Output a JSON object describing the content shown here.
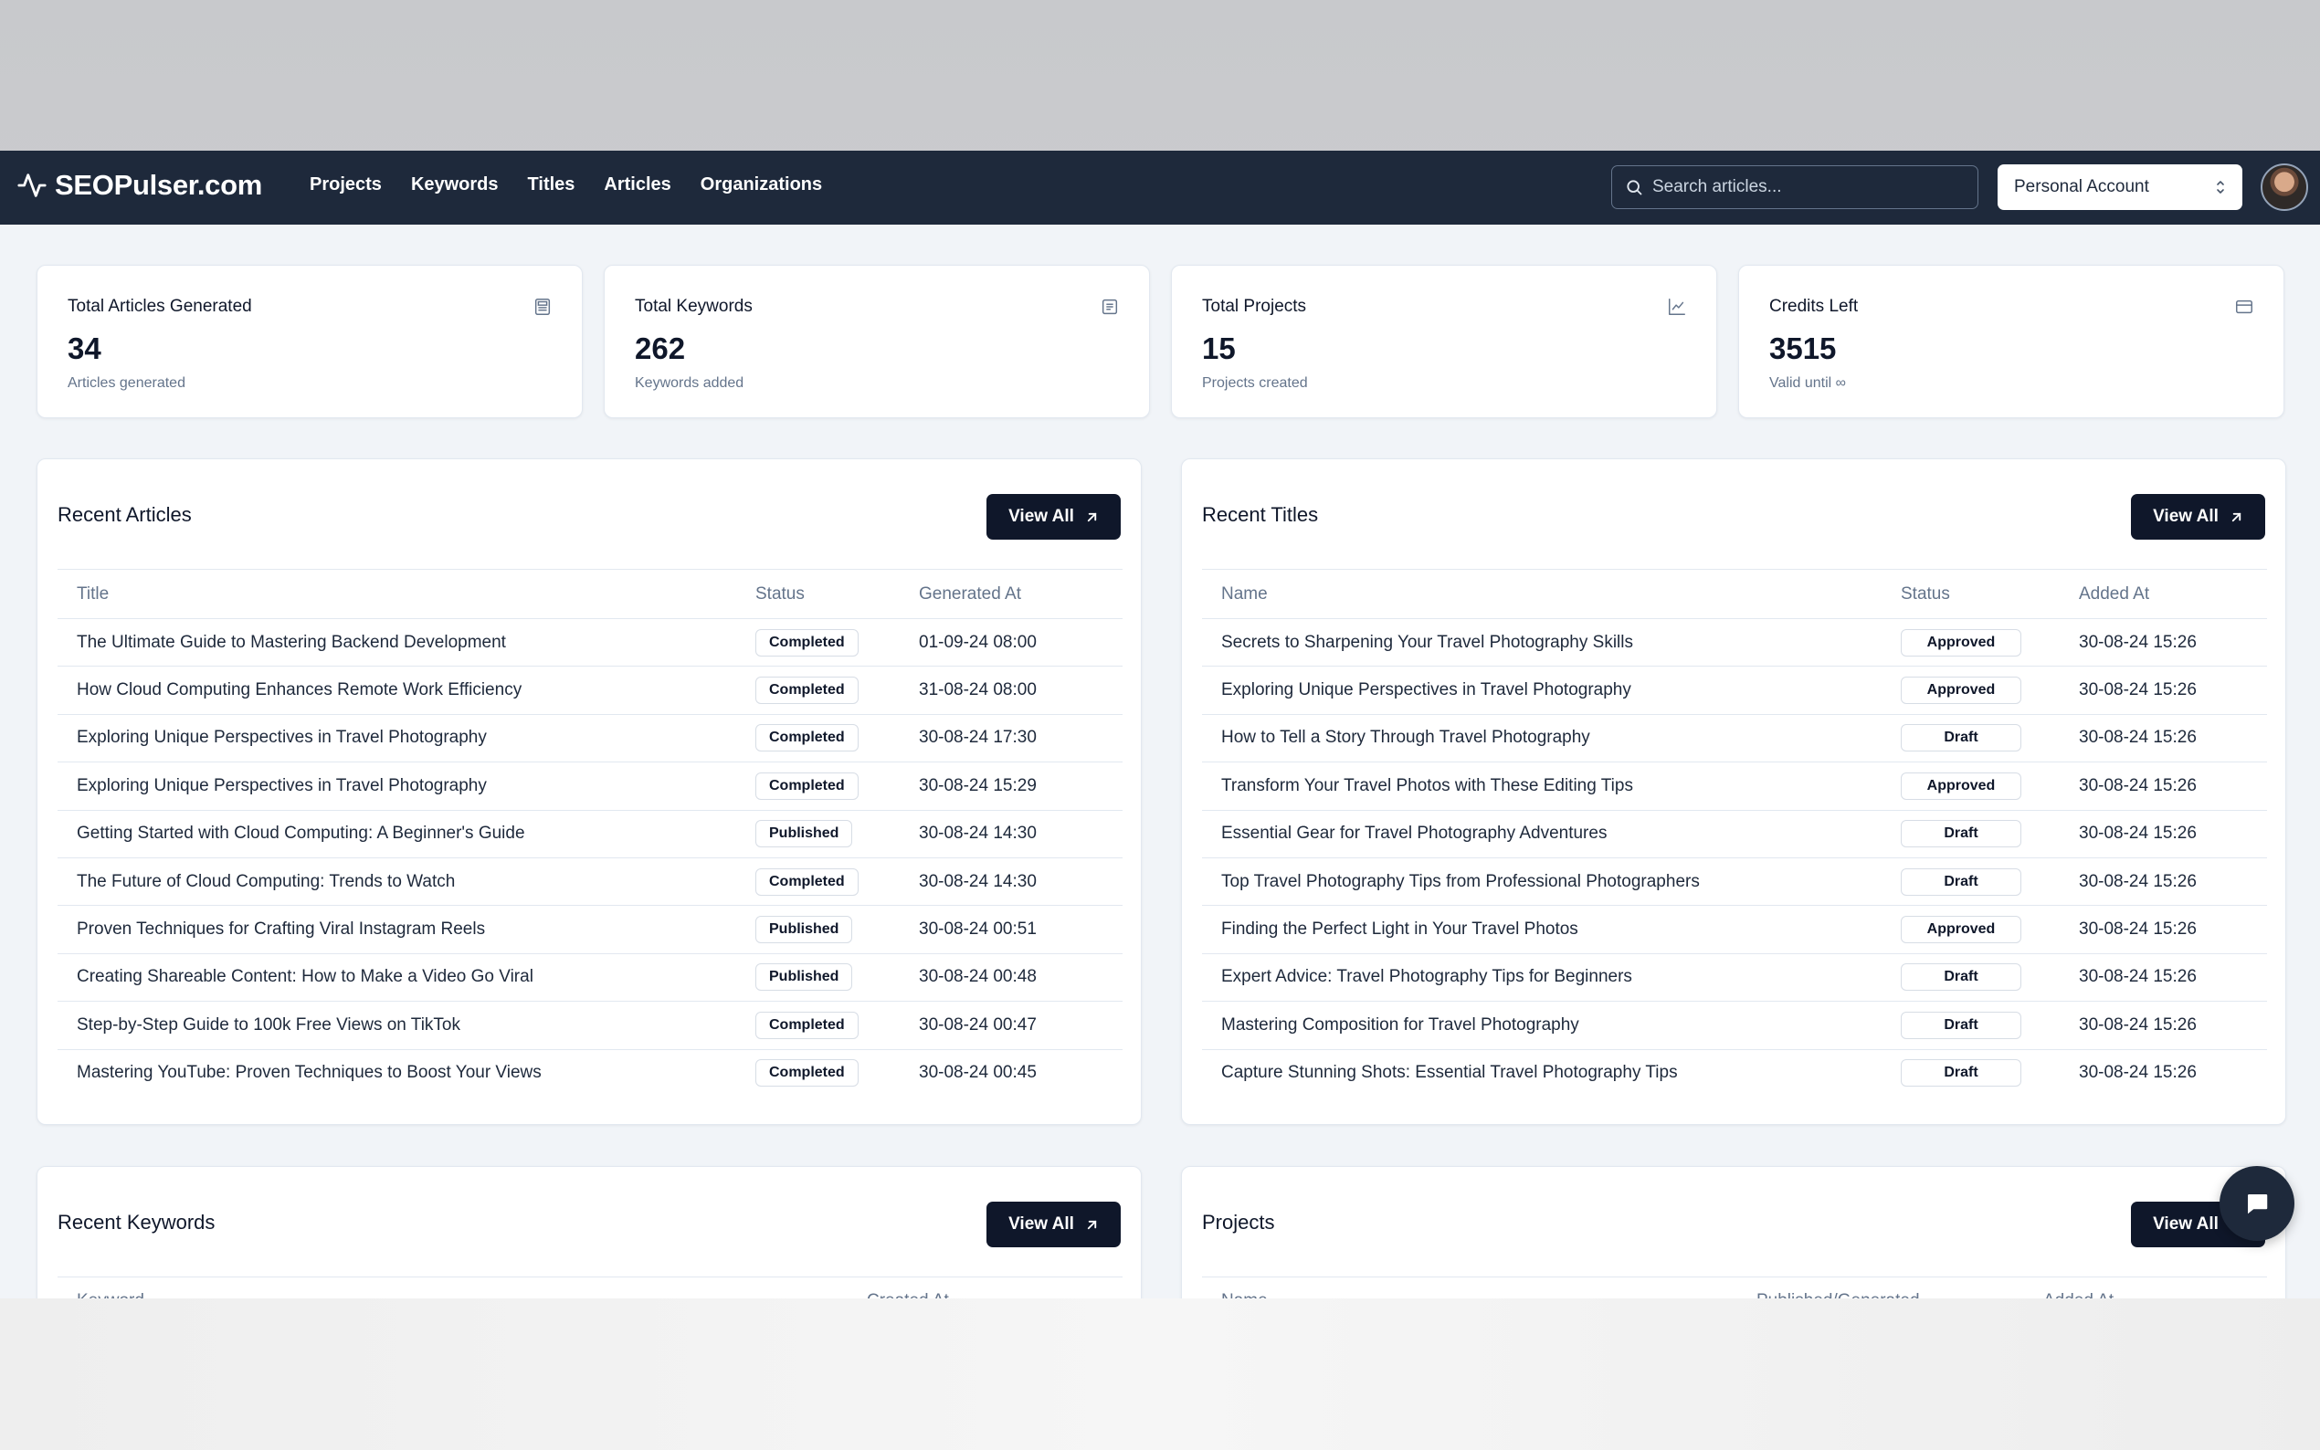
{
  "brand": {
    "name": "SEOPulser.com"
  },
  "nav": {
    "links": [
      "Projects",
      "Keywords",
      "Titles",
      "Articles",
      "Organizations"
    ]
  },
  "search": {
    "placeholder": "Search articles..."
  },
  "account": {
    "selected": "Personal Account"
  },
  "stats": [
    {
      "label": "Total Articles Generated",
      "value": "34",
      "sub": "Articles generated",
      "icon": "newspaper-icon"
    },
    {
      "label": "Total Keywords",
      "value": "262",
      "sub": "Keywords added",
      "icon": "list-icon"
    },
    {
      "label": "Total Projects",
      "value": "15",
      "sub": "Projects created",
      "icon": "line-chart-icon"
    },
    {
      "label": "Credits Left",
      "value": "3515",
      "sub": "Valid until ∞",
      "icon": "credit-card-icon"
    }
  ],
  "recent_articles": {
    "title": "Recent Articles",
    "view_all": "View All",
    "columns": [
      "Title",
      "Status",
      "Generated At"
    ],
    "rows": [
      [
        "The Ultimate Guide to Mastering Backend Development",
        "Completed",
        "01-09-24 08:00"
      ],
      [
        "How Cloud Computing Enhances Remote Work Efficiency",
        "Completed",
        "31-08-24 08:00"
      ],
      [
        "Exploring Unique Perspectives in Travel Photography",
        "Completed",
        "30-08-24 17:30"
      ],
      [
        "Exploring Unique Perspectives in Travel Photography",
        "Completed",
        "30-08-24 15:29"
      ],
      [
        "Getting Started with Cloud Computing: A Beginner's Guide",
        "Published",
        "30-08-24 14:30"
      ],
      [
        "The Future of Cloud Computing: Trends to Watch",
        "Completed",
        "30-08-24 14:30"
      ],
      [
        "Proven Techniques for Crafting Viral Instagram Reels",
        "Published",
        "30-08-24 00:51"
      ],
      [
        "Creating Shareable Content: How to Make a Video Go Viral",
        "Published",
        "30-08-24 00:48"
      ],
      [
        "Step-by-Step Guide to 100k Free Views on TikTok",
        "Completed",
        "30-08-24 00:47"
      ],
      [
        "Mastering YouTube: Proven Techniques to Boost Your Views",
        "Completed",
        "30-08-24 00:45"
      ]
    ]
  },
  "recent_titles": {
    "title": "Recent Titles",
    "view_all": "View All",
    "columns": [
      "Name",
      "Status",
      "Added At"
    ],
    "rows": [
      [
        "Secrets to Sharpening Your Travel Photography Skills",
        "Approved",
        "30-08-24 15:26"
      ],
      [
        "Exploring Unique Perspectives in Travel Photography",
        "Approved",
        "30-08-24 15:26"
      ],
      [
        "How to Tell a Story Through Travel Photography",
        "Draft",
        "30-08-24 15:26"
      ],
      [
        "Transform Your Travel Photos with These Editing Tips",
        "Approved",
        "30-08-24 15:26"
      ],
      [
        "Essential Gear for Travel Photography Adventures",
        "Draft",
        "30-08-24 15:26"
      ],
      [
        "Top Travel Photography Tips from Professional Photographers",
        "Draft",
        "30-08-24 15:26"
      ],
      [
        "Finding the Perfect Light in Your Travel Photos",
        "Approved",
        "30-08-24 15:26"
      ],
      [
        "Expert Advice: Travel Photography Tips for Beginners",
        "Draft",
        "30-08-24 15:26"
      ],
      [
        "Mastering Composition for Travel Photography",
        "Draft",
        "30-08-24 15:26"
      ],
      [
        "Capture Stunning Shots: Essential Travel Photography Tips",
        "Draft",
        "30-08-24 15:26"
      ]
    ]
  },
  "recent_keywords": {
    "title": "Recent Keywords",
    "view_all": "View All",
    "columns": [
      "Keyword",
      "Created At"
    ]
  },
  "projects": {
    "title": "Projects",
    "view_all": "View All",
    "columns": [
      "Name",
      "Published/Generated",
      "Added At"
    ]
  },
  "colors": {
    "nav_bg": "#1e293b",
    "button_bg": "#0f172a",
    "page_bg": "#f1f4f8"
  }
}
